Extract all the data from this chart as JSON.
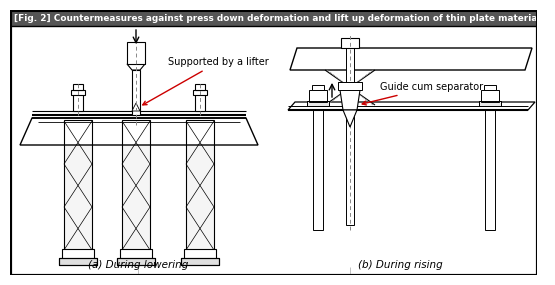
{
  "title": "[Fig. 2] Countermeasures against press down deformation and lift up deformation of thin plate materials",
  "title_bg": "#555555",
  "title_fg": "#ffffff",
  "bg_color": "#ffffff",
  "label_a": "(a) During lowering",
  "label_b": "(b) During rising",
  "annotation_a": "Supported by a lifter",
  "annotation_b": "Guide cum separator",
  "lc": "#000000",
  "rc": "#cc0000",
  "dc": "#888888"
}
